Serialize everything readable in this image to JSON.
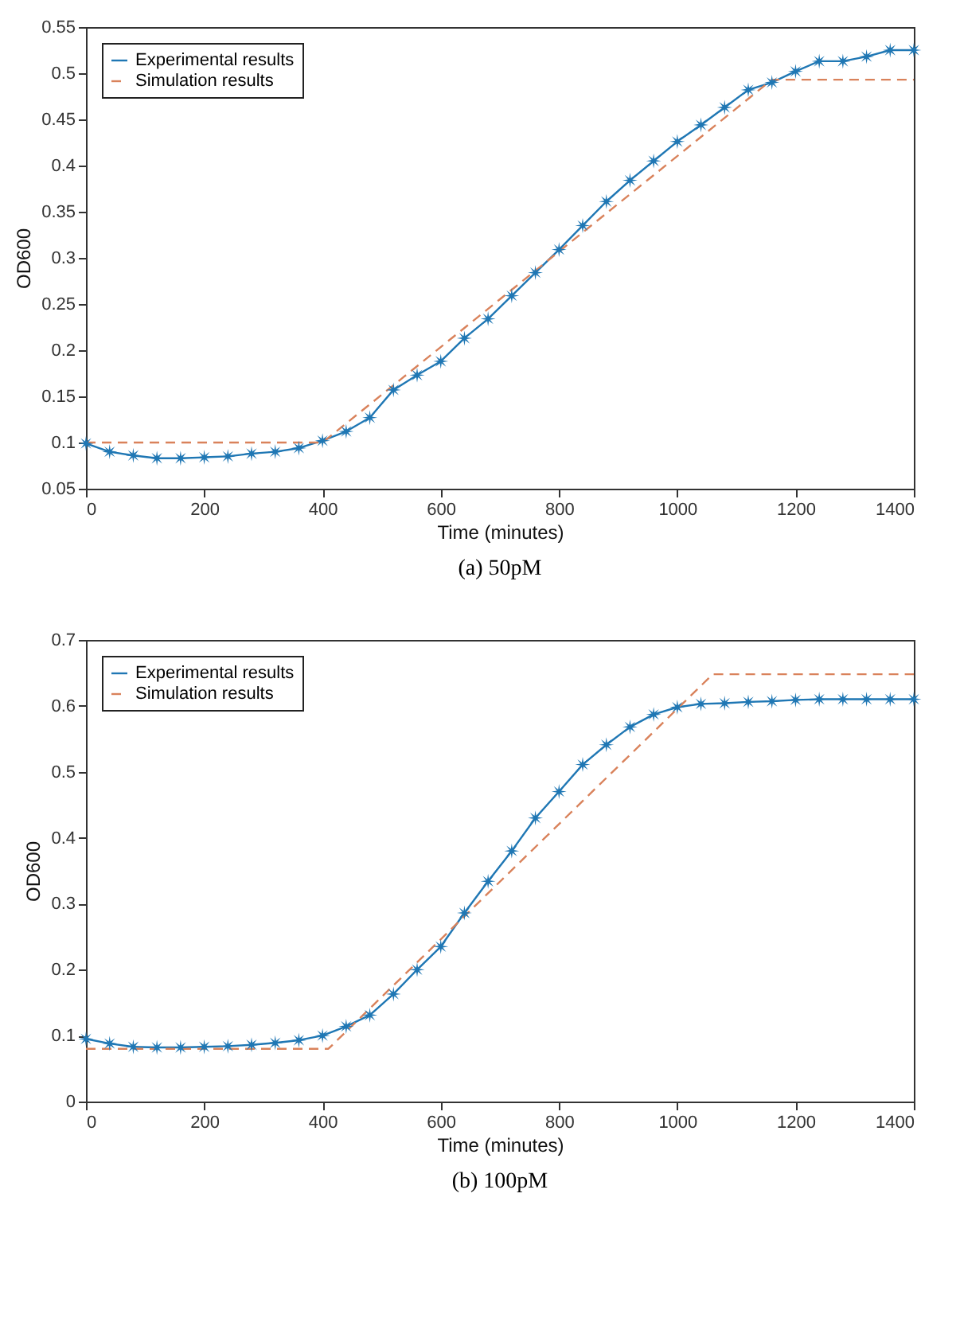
{
  "chart_data": [
    {
      "type": "line",
      "xlabel": "Time (minutes)",
      "ylabel": "OD600",
      "annotations": [
        "(a) 50pM"
      ],
      "xlim": [
        0,
        1400
      ],
      "xticks": [
        0,
        200,
        400,
        600,
        800,
        1000,
        1200,
        1400
      ],
      "ylim": [
        0.05,
        0.55
      ],
      "yticks": [
        0.05,
        0.1,
        0.15,
        0.2,
        0.25,
        0.3,
        0.35,
        0.4,
        0.45,
        0.5,
        0.55
      ],
      "grid": false,
      "legend": "top left",
      "series": [
        {
          "name": "Experimental results",
          "color": "#1f77b4",
          "marker": "star",
          "line_style": "solid",
          "x": [
            0,
            40,
            80,
            120,
            160,
            200,
            240,
            280,
            320,
            360,
            400,
            440,
            480,
            520,
            560,
            600,
            640,
            680,
            720,
            760,
            800,
            840,
            880,
            920,
            960,
            1000,
            1040,
            1080,
            1120,
            1160,
            1200,
            1240,
            1280,
            1320,
            1360,
            1400
          ],
          "values": [
            0.099,
            0.09,
            0.086,
            0.083,
            0.083,
            0.084,
            0.085,
            0.088,
            0.09,
            0.094,
            0.102,
            0.112,
            0.127,
            0.157,
            0.173,
            0.188,
            0.213,
            0.234,
            0.259,
            0.284,
            0.309,
            0.335,
            0.361,
            0.384,
            0.405,
            0.426,
            0.444,
            0.463,
            0.482,
            0.49,
            0.502,
            0.513,
            0.513,
            0.518,
            0.525,
            0.525
          ]
        },
        {
          "name": "Simulation results",
          "color": "#d9825b",
          "marker": "none",
          "line_style": "dashed",
          "x": [
            0,
            400,
            1160,
            1400
          ],
          "values": [
            0.1,
            0.1,
            0.493,
            0.493
          ]
        }
      ]
    },
    {
      "type": "line",
      "xlabel": "Time (minutes)",
      "ylabel": "OD600",
      "annotations": [
        "(b) 100pM"
      ],
      "xlim": [
        0,
        1400
      ],
      "xticks": [
        0,
        200,
        400,
        600,
        800,
        1000,
        1200,
        1400
      ],
      "ylim": [
        0,
        0.7
      ],
      "yticks": [
        0,
        0.1,
        0.2,
        0.3,
        0.4,
        0.5,
        0.6,
        0.7
      ],
      "grid": false,
      "legend": "top left",
      "series": [
        {
          "name": "Experimental results",
          "color": "#1f77b4",
          "marker": "star",
          "line_style": "solid",
          "x": [
            0,
            40,
            80,
            120,
            160,
            200,
            240,
            280,
            320,
            360,
            400,
            440,
            480,
            520,
            560,
            600,
            640,
            680,
            720,
            760,
            800,
            840,
            880,
            920,
            960,
            1000,
            1040,
            1080,
            1120,
            1160,
            1200,
            1240,
            1280,
            1320,
            1360,
            1400
          ],
          "values": [
            0.095,
            0.088,
            0.083,
            0.082,
            0.082,
            0.083,
            0.084,
            0.086,
            0.089,
            0.093,
            0.1,
            0.114,
            0.131,
            0.163,
            0.2,
            0.235,
            0.286,
            0.334,
            0.38,
            0.43,
            0.47,
            0.511,
            0.541,
            0.568,
            0.587,
            0.598,
            0.603,
            0.604,
            0.606,
            0.607,
            0.609,
            0.61,
            0.61,
            0.61,
            0.61,
            0.61
          ]
        },
        {
          "name": "Simulation results",
          "color": "#d9825b",
          "marker": "none",
          "line_style": "dashed",
          "x": [
            0,
            410,
            1060,
            1400
          ],
          "values": [
            0.08,
            0.08,
            0.648,
            0.648
          ]
        }
      ]
    }
  ]
}
